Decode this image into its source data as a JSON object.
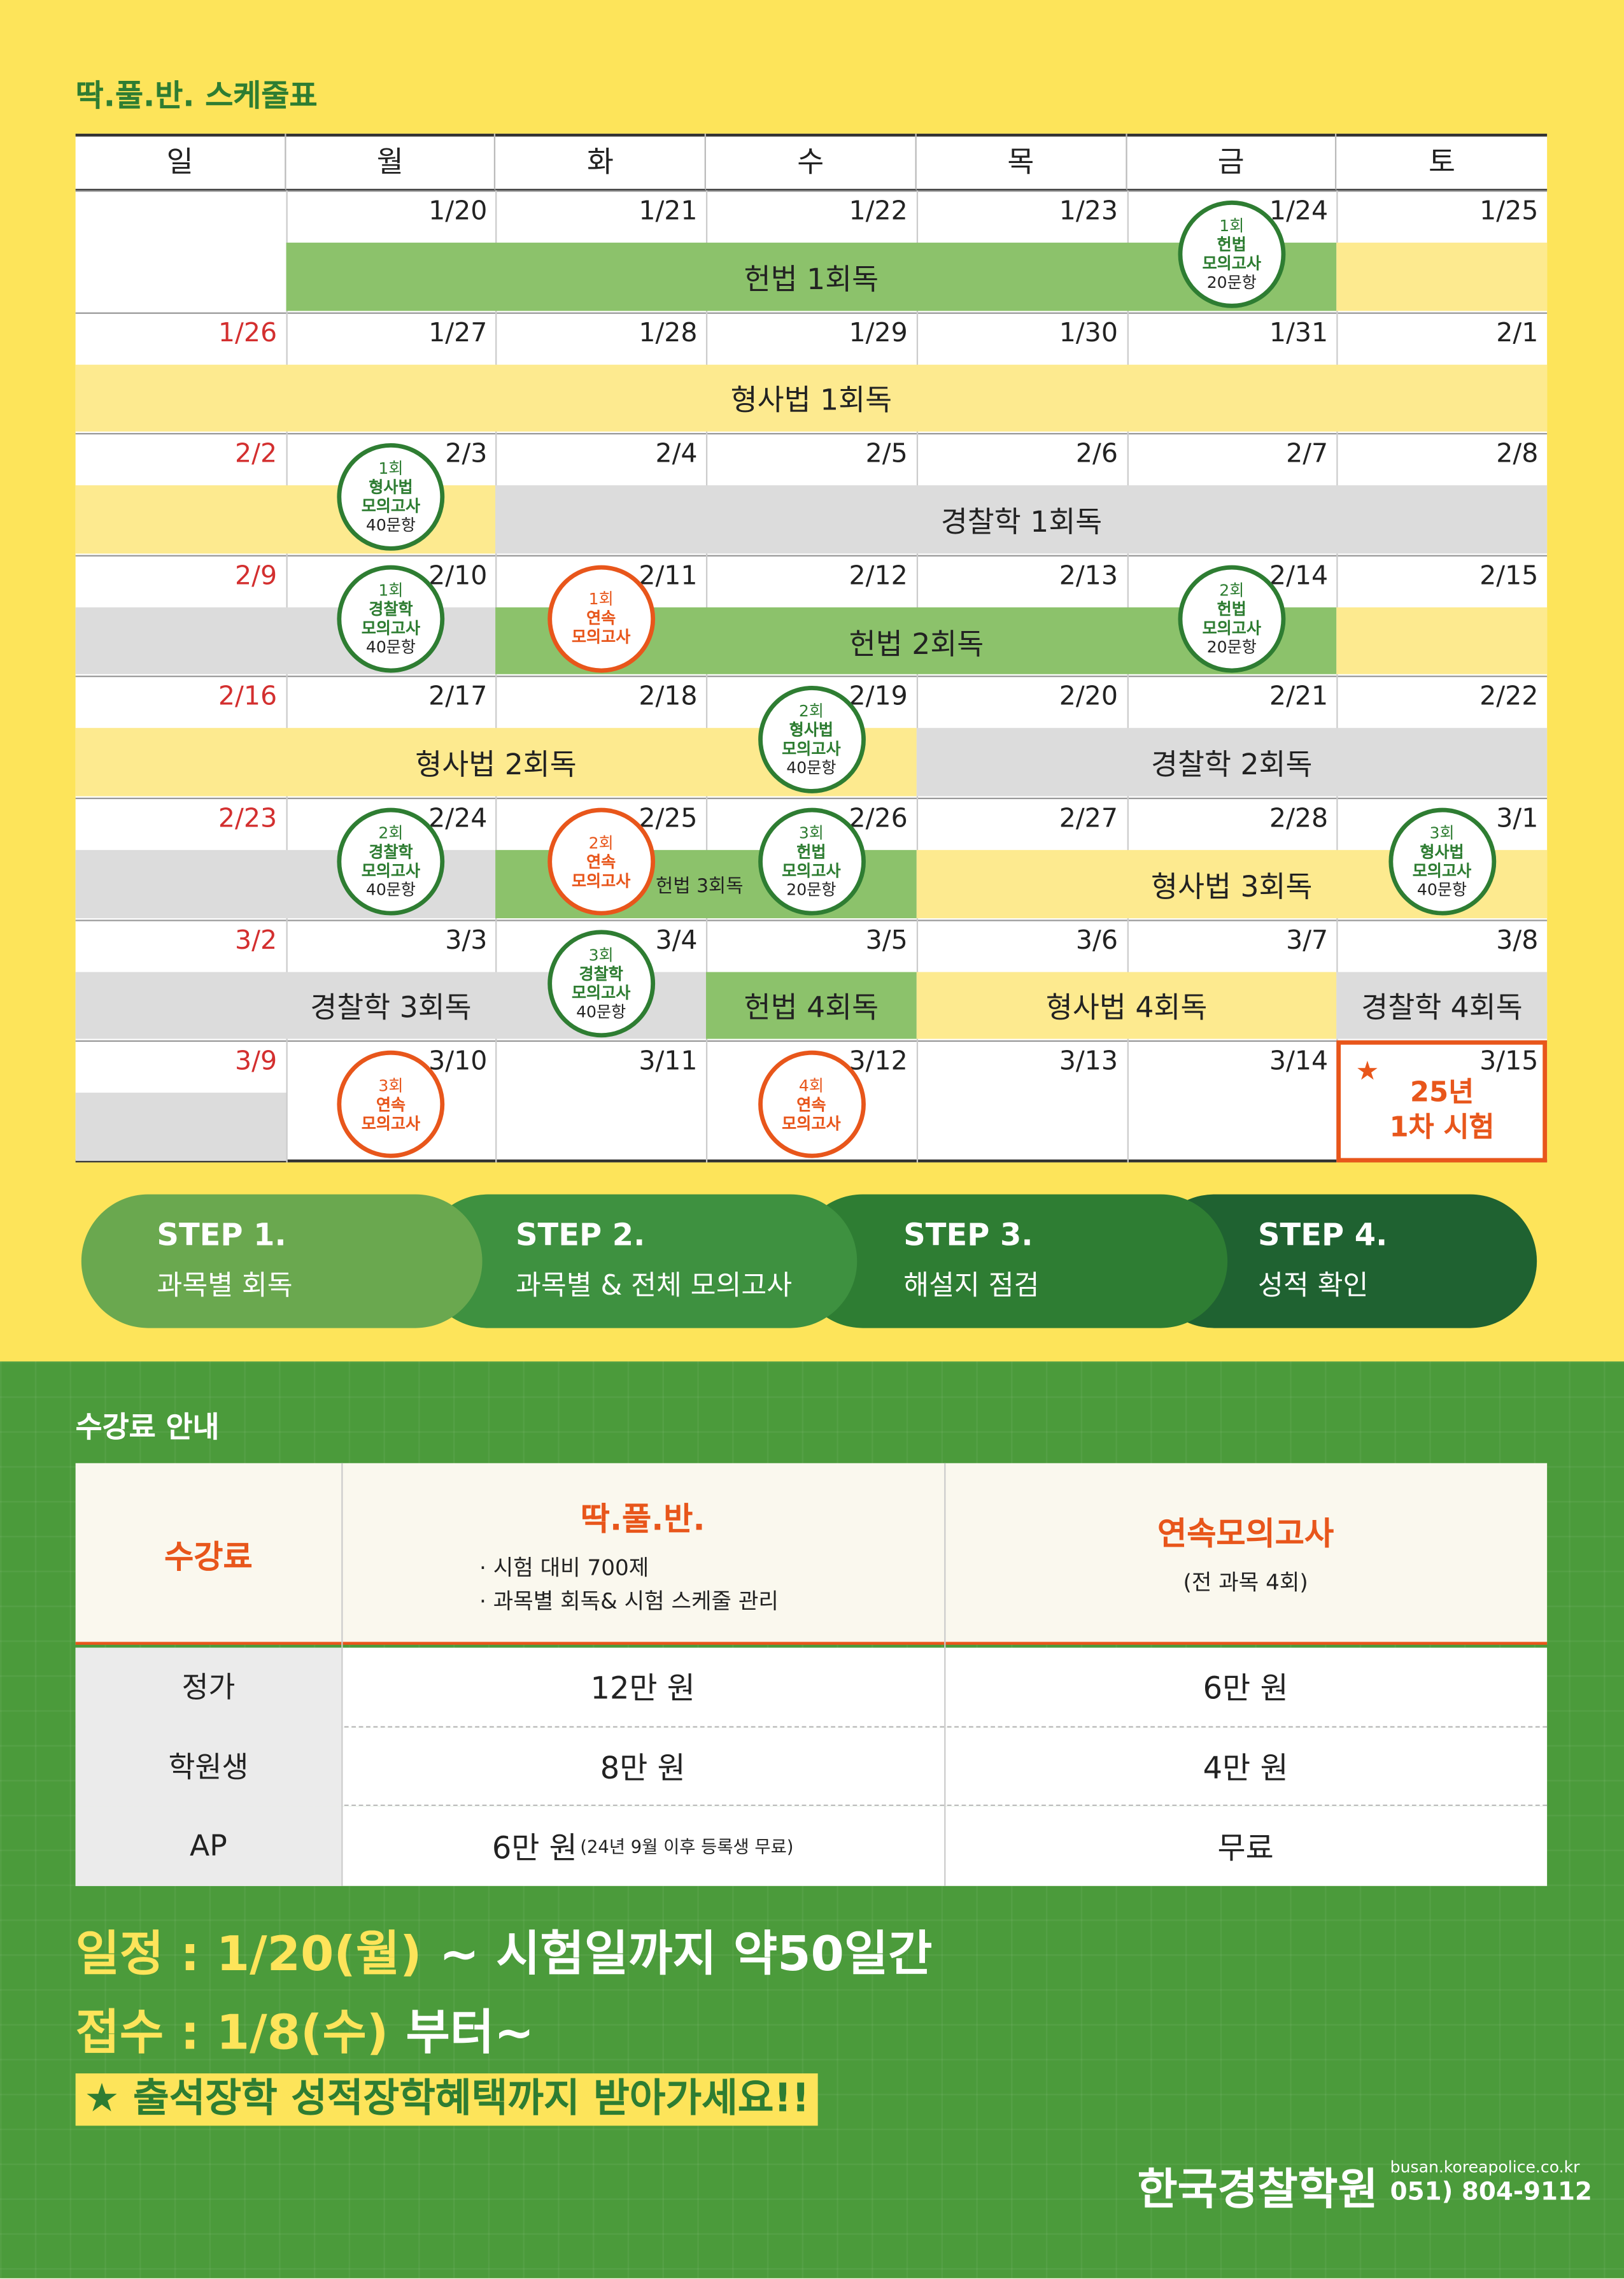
{
  "header": {
    "title": "딱.풀.반. 스케줄표"
  },
  "calendar": {
    "weekdays": [
      "일",
      "월",
      "화",
      "수",
      "목",
      "금",
      "토"
    ],
    "weeks": [
      {
        "dates": [
          null,
          "1/20",
          "1/21",
          "1/22",
          "1/23",
          "1/24",
          "1/25"
        ],
        "bars": [
          "헌법 1회독"
        ],
        "badges": [
          [
            "1회",
            "헌법",
            "모의고사",
            "20문항"
          ]
        ]
      },
      {
        "dates": [
          "1/26",
          "1/27",
          "1/28",
          "1/29",
          "1/30",
          "1/31",
          "2/1"
        ],
        "bars": [
          "형사법 1회독"
        ],
        "badges": []
      },
      {
        "dates": [
          "2/2",
          "2/3",
          "2/4",
          "2/5",
          "2/6",
          "2/7",
          "2/8"
        ],
        "bars": [
          "경찰학 1회독"
        ],
        "badges": [
          [
            "1회",
            "형사법",
            "모의고사",
            "40문항"
          ]
        ]
      },
      {
        "dates": [
          "2/9",
          "2/10",
          "2/11",
          "2/12",
          "2/13",
          "2/14",
          "2/15"
        ],
        "bars": [
          "헌법 2회독"
        ],
        "badges": [
          [
            "1회",
            "경찰학",
            "모의고사",
            "40문항"
          ],
          [
            "1회",
            "연속",
            "모의고사"
          ],
          [
            "2회",
            "헌법",
            "모의고사",
            "20문항"
          ]
        ]
      },
      {
        "dates": [
          "2/16",
          "2/17",
          "2/18",
          "2/19",
          "2/20",
          "2/21",
          "2/22"
        ],
        "bars": [
          "형사법 2회독",
          "경찰학 2회독"
        ],
        "badges": [
          [
            "2회",
            "형사법",
            "모의고사",
            "40문항"
          ]
        ]
      },
      {
        "dates": [
          "2/23",
          "2/24",
          "2/25",
          "2/26",
          "2/27",
          "2/28",
          "3/1"
        ],
        "bars": [
          "헌법 3회독",
          "형사법 3회독"
        ],
        "badges": [
          [
            "2회",
            "경찰학",
            "모의고사",
            "40문항"
          ],
          [
            "2회",
            "연속",
            "모의고사"
          ],
          [
            "3회",
            "헌법",
            "모의고사",
            "20문항"
          ],
          [
            "3회",
            "형사법",
            "모의고사",
            "40문항"
          ]
        ]
      },
      {
        "dates": [
          "3/2",
          "3/3",
          "3/4",
          "3/5",
          "3/6",
          "3/7",
          "3/8"
        ],
        "bars": [
          "경찰학 3회독",
          "헌법 4회독",
          "형사법 4회독",
          "경찰학 4회독"
        ],
        "badges": [
          [
            "3회",
            "경찰학",
            "모의고사",
            "40문항"
          ]
        ]
      },
      {
        "dates": [
          "3/9",
          "3/10",
          "3/11",
          "3/12",
          "3/13",
          "3/14",
          "3/15"
        ],
        "bars": [],
        "badges": [
          [
            "3회",
            "연속",
            "모의고사"
          ],
          [
            "4회",
            "연속",
            "모의고사"
          ]
        ],
        "exam": {
          "star": "★",
          "lines": [
            "25년",
            "1차 시험"
          ]
        }
      }
    ]
  },
  "steps": [
    {
      "step": "STEP 1.",
      "text": "과목별 회독"
    },
    {
      "step": "STEP 2.",
      "text": "과목별 & 전체 모의고사"
    },
    {
      "step": "STEP 3.",
      "text": "해설지 점검"
    },
    {
      "step": "STEP 4.",
      "text": "성적 확인"
    }
  ],
  "fees": {
    "title": "수강료 안내",
    "header": {
      "label": "수강료",
      "plans": [
        {
          "name": "딱.풀.반.",
          "notes": [
            "· 시험 대비 700제",
            "· 과목별 회독& 시험 스케줄 관리"
          ]
        },
        {
          "name": "연속모의고사",
          "notes": [
            "(전 과목 4회)"
          ]
        }
      ]
    },
    "rows": [
      {
        "label": "정가",
        "cells": [
          "12만 원",
          "6만 원"
        ]
      },
      {
        "label": "학원생",
        "cells": [
          "8만 원",
          "4만 원"
        ]
      },
      {
        "label": "AP",
        "cells": [
          "6만 원",
          "무료"
        ],
        "note": "(24년 9월 이후 등록생 무료)"
      }
    ]
  },
  "info": {
    "schedule": {
      "label": "일정 : 1/20(월)",
      "text": "~ 시험일까지 약50일간"
    },
    "register": {
      "label": "접수 : 1/8(수)",
      "text": "부터~"
    },
    "banner": "★ 출석장학 성적장학혜택까지 받아가세요!!"
  },
  "footer": {
    "brand": "한국경찰학원",
    "site": "busan.koreapolice.co.kr",
    "phone": "051) 804-9112"
  }
}
